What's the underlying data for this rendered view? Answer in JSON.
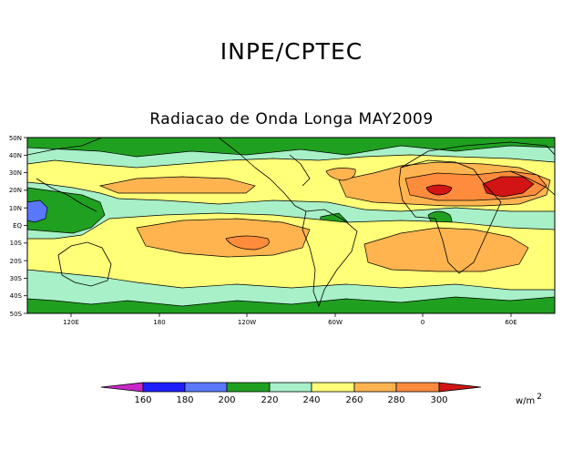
{
  "header": {
    "title": "INPE/CPTEC",
    "subtitle": "Radiacao de Onda Longa MAY2009"
  },
  "map": {
    "lat_labels": [
      "50N",
      "40N",
      "30N",
      "20N",
      "10N",
      "EQ",
      "10S",
      "20S",
      "30S",
      "40S",
      "50S"
    ],
    "lon_labels": [
      "120E",
      "180",
      "120W",
      "60W",
      "0",
      "60E"
    ]
  },
  "colorbar": {
    "labels": [
      "160",
      "180",
      "200",
      "220",
      "240",
      "260",
      "280",
      "300"
    ],
    "units_base": "w/m",
    "units_exp": "2",
    "colors": [
      "#c828c8",
      "#1e1eff",
      "#5a78ff",
      "#20a020",
      "#a8f0c8",
      "#ffff78",
      "#ffb450",
      "#ff8c3c",
      "#d21414"
    ]
  }
}
